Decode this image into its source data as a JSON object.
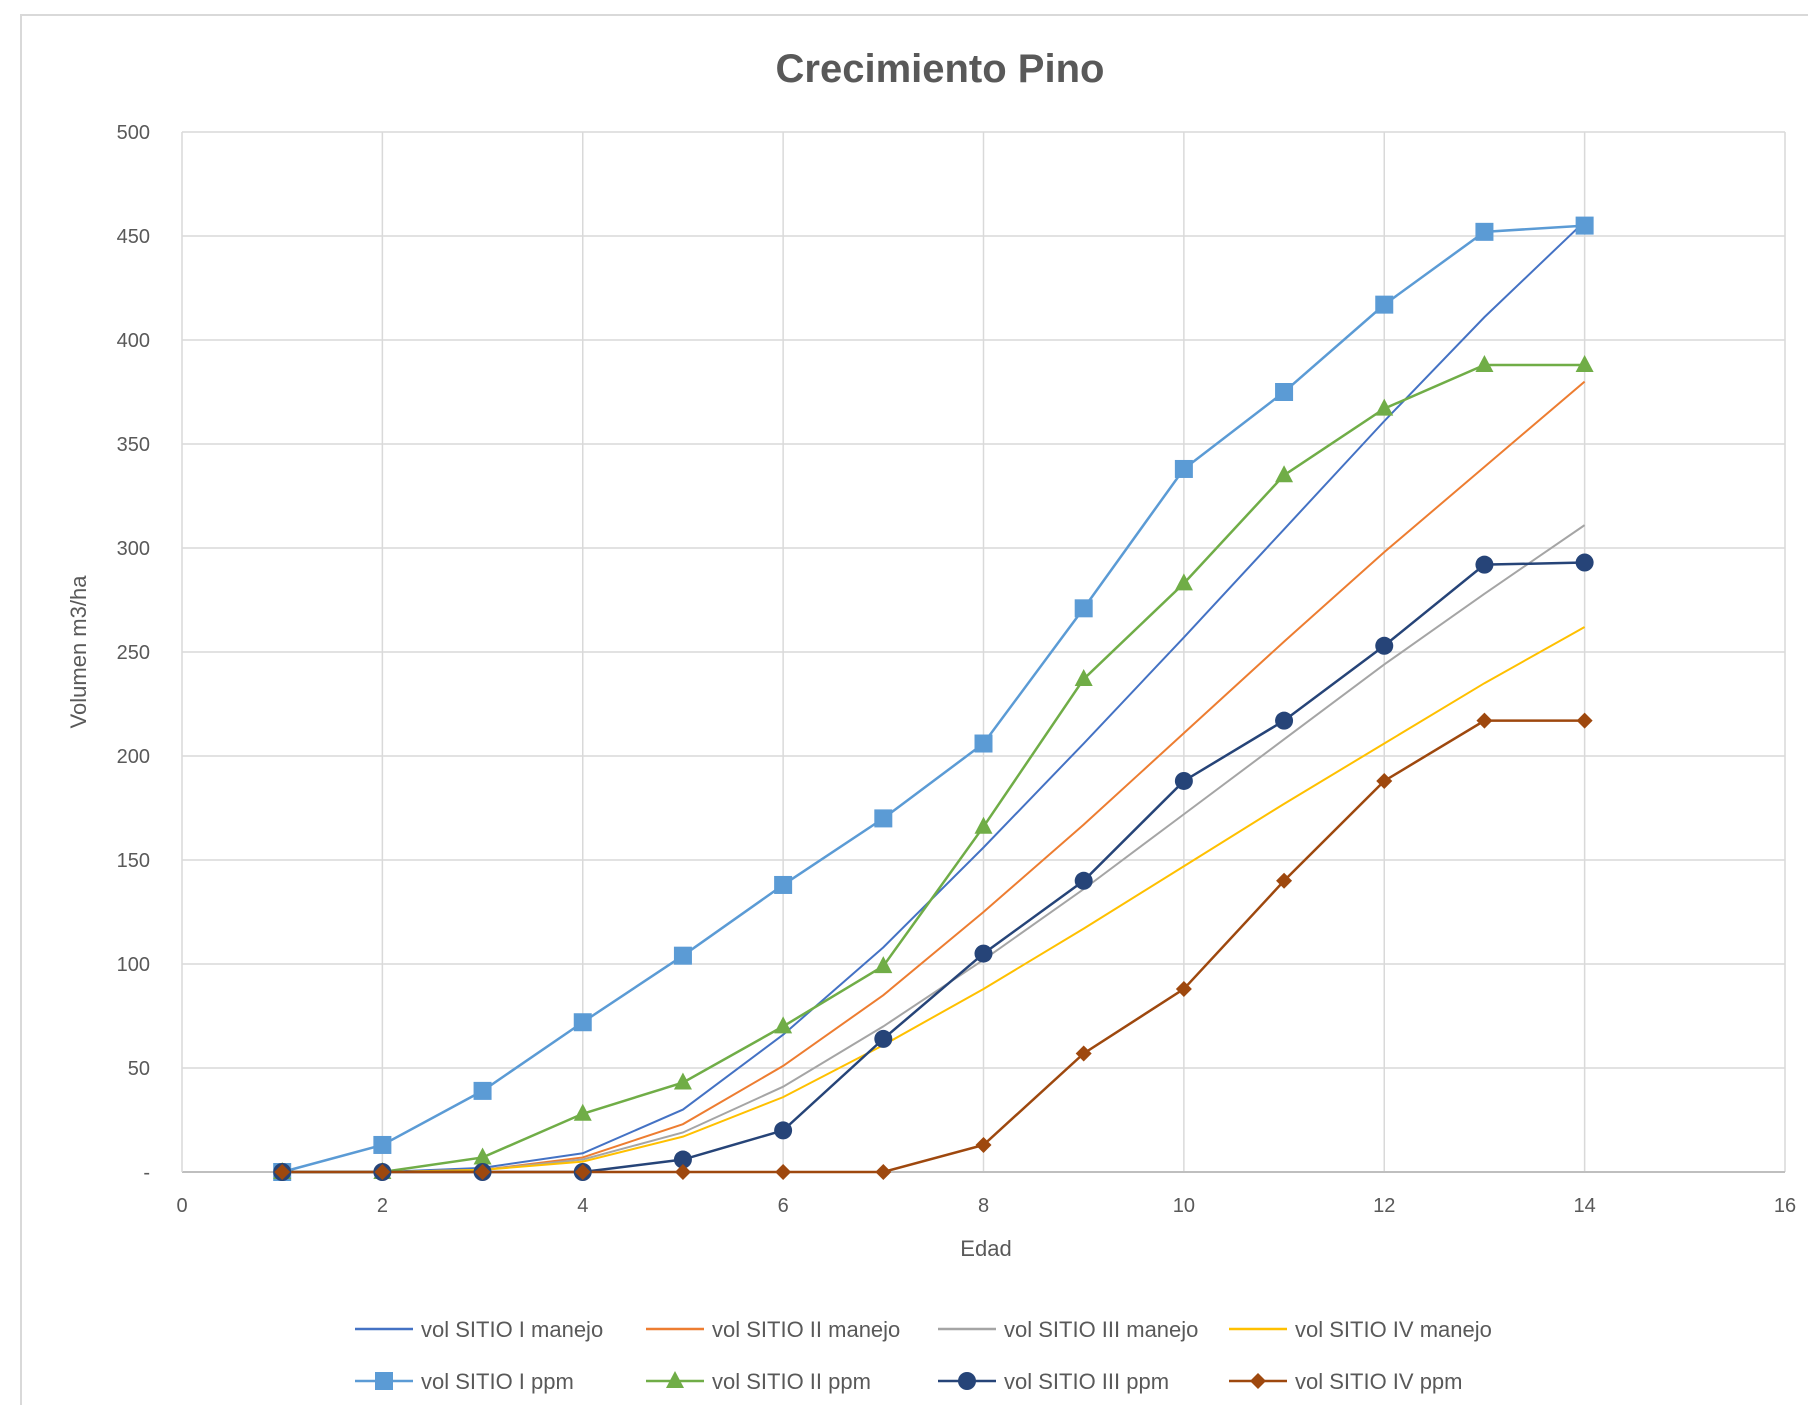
{
  "chart_data": {
    "type": "line",
    "title": "Crecimiento Pino",
    "xlabel": "Edad",
    "ylabel": "Volumen m3/ha",
    "xlim": [
      0,
      16
    ],
    "ylim": [
      0,
      500
    ],
    "x_ticks": [
      "0",
      "2",
      "4",
      "6",
      "8",
      "10",
      "12",
      "14",
      "16"
    ],
    "y_ticks": [
      "-",
      "50",
      "100",
      "150",
      "200",
      "250",
      "300",
      "350",
      "400",
      "450",
      "500"
    ],
    "grid": true,
    "legend_position": "bottom",
    "x": [
      1,
      2,
      3,
      4,
      5,
      6,
      7,
      8,
      9,
      10,
      11,
      12,
      13,
      14
    ],
    "series": [
      {
        "name": "vol SITIO I manejo",
        "color": "#4472c4",
        "marker": "none",
        "values": [
          0,
          0,
          2,
          9,
          30,
          66,
          108,
          156,
          206,
          257,
          309,
          361,
          411,
          457
        ]
      },
      {
        "name": "vol SITIO II manejo",
        "color": "#ed7d31",
        "marker": "none",
        "values": [
          0,
          0,
          1,
          7,
          23,
          51,
          85,
          125,
          167,
          211,
          255,
          298,
          339,
          380
        ]
      },
      {
        "name": "vol SITIO III manejo",
        "color": "#a5a5a5",
        "marker": "none",
        "values": [
          0,
          0,
          1,
          6,
          19,
          41,
          70,
          102,
          136,
          172,
          208,
          244,
          278,
          311
        ]
      },
      {
        "name": "vol SITIO IV manejo",
        "color": "#ffc000",
        "marker": "none",
        "values": [
          0,
          0,
          1,
          5,
          17,
          36,
          61,
          88,
          117,
          147,
          177,
          206,
          235,
          262
        ]
      },
      {
        "name": "vol SITIO I ppm",
        "color": "#5b9bd5",
        "marker": "square",
        "values": [
          0,
          13,
          39,
          72,
          104,
          138,
          170,
          206,
          271,
          338,
          375,
          417,
          452,
          455
        ]
      },
      {
        "name": "vol SITIO II ppm",
        "color": "#70ad47",
        "marker": "triangle",
        "values": [
          0,
          0,
          7,
          28,
          43,
          70,
          99,
          166,
          237,
          283,
          335,
          367,
          388,
          388
        ]
      },
      {
        "name": "vol SITIO III ppm",
        "color": "#264478",
        "marker": "circle",
        "values": [
          0,
          0,
          0,
          0,
          6,
          20,
          64,
          105,
          140,
          188,
          217,
          253,
          292,
          293
        ]
      },
      {
        "name": "vol SITIO IV ppm",
        "color": "#9e480e",
        "marker": "diamond",
        "values": [
          0,
          0,
          0,
          0,
          0,
          0,
          0,
          13,
          57,
          88,
          140,
          188,
          217,
          217
        ]
      }
    ]
  }
}
